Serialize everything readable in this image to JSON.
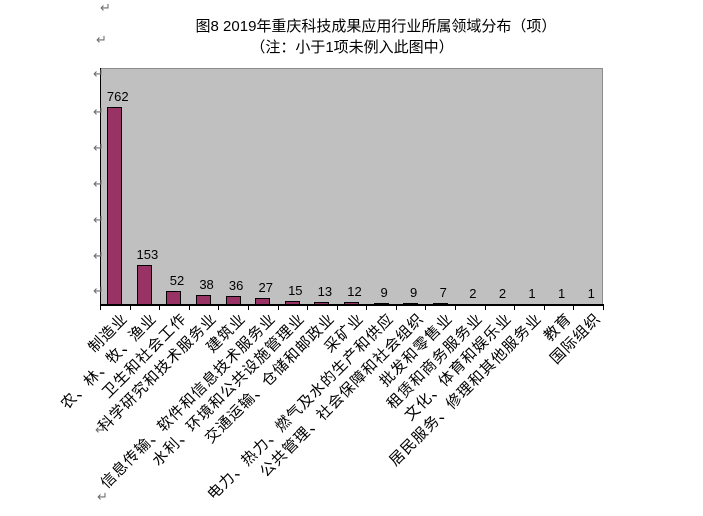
{
  "document": {
    "line_break_mark_glyph": "↵"
  },
  "chart_data": {
    "type": "bar",
    "title": "图8 2019年重庆科技成果应用行业所属领域分布（项）",
    "subtitle": "（注：小于1项未例入此图中）",
    "categories": [
      "制造业",
      "农、林、牧、渔业",
      "卫生和社会工作",
      "科学研究和技术服务业",
      "建筑业",
      "信息传输、软件和信息技术服务业",
      "水利、环境和公共设施管理业",
      "交通运输、仓储和邮政业",
      "采矿业",
      "电力、热力、燃气及水的生产和供应",
      "公共管理、社会保障和社会组织",
      "批发和零售业",
      "租赁和商务服务业",
      "文化、体育和娱乐业",
      "居民服务、修理和其他服务业",
      "教育",
      "国际组织"
    ],
    "values": [
      762,
      153,
      52,
      38,
      36,
      27,
      15,
      13,
      12,
      9,
      9,
      7,
      2,
      2,
      1,
      1,
      1
    ],
    "xlabel": "",
    "ylabel": "",
    "ylim": [
      0,
      790
    ],
    "legend": "none",
    "grid": "off",
    "y_axis_tick_labels_visible": false,
    "data_labels_visible": true,
    "x_label_rotation_deg": 45,
    "colors": {
      "bar_fill": "#993366",
      "bar_border": "#000000",
      "plot_background": "#C0C0C0",
      "plot_border": "#8C8C8C",
      "axis_line": "#000000",
      "text": "#000000",
      "page_background": "#FFFFFF",
      "line_break_mark": "#6E6E6E"
    }
  }
}
